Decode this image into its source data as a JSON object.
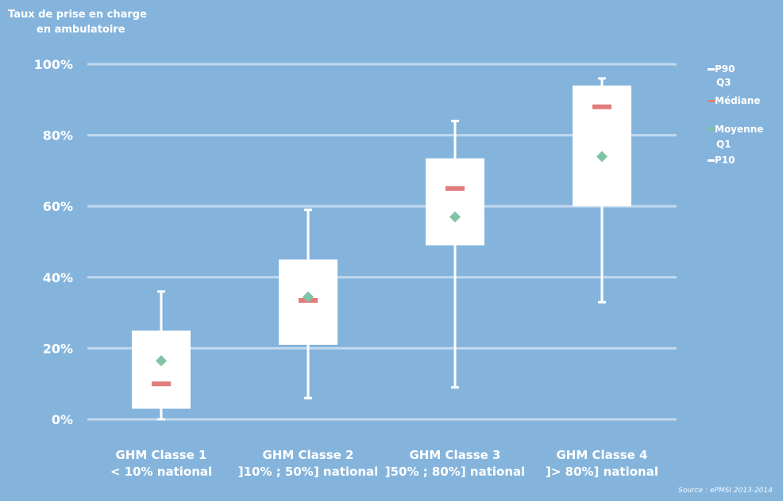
{
  "chart_data": {
    "type": "boxplot",
    "ylabel": [
      "Taux de prise en charge",
      "en ambulatoire"
    ],
    "ylim": [
      0,
      100
    ],
    "yticks": [
      0,
      20,
      40,
      60,
      80,
      100
    ],
    "ytick_labels": [
      "0%",
      "20%",
      "40%",
      "60%",
      "80%",
      "100%"
    ],
    "grid": true,
    "legend_position": "right",
    "legend": [
      {
        "key": "p90",
        "label": "P90"
      },
      {
        "key": "q3",
        "label": "Q3"
      },
      {
        "key": "median",
        "label": "Médiane"
      },
      {
        "key": "mean",
        "label": "Moyenne"
      },
      {
        "key": "q1",
        "label": "Q1"
      },
      {
        "key": "p10",
        "label": "P10"
      }
    ],
    "categories": [
      {
        "line1": "GHM Classe 1",
        "line2": "< 10% national"
      },
      {
        "line1": "GHM Classe 2",
        "line2": "]10% ; 50%] national"
      },
      {
        "line1": "GHM Classe 3",
        "line2": "]50% ; 80%] national"
      },
      {
        "line1": "GHM Classe 4",
        "line2": "]> 80%] national"
      }
    ],
    "series": {
      "p10": [
        0,
        6,
        9,
        33
      ],
      "q1": [
        3,
        21,
        49,
        60
      ],
      "median": [
        10,
        33.5,
        65,
        88
      ],
      "mean": [
        16.5,
        34.5,
        57,
        74
      ],
      "q3": [
        25,
        45,
        73.5,
        94
      ],
      "p90": [
        36,
        59,
        84,
        96
      ]
    },
    "source": "Source : ePMSI 2013-2014"
  },
  "colors": {
    "background": "#84b4dc",
    "box": "#ffffff",
    "grid": "#c2d9ee",
    "median": "#e07c7c",
    "mean": "#7fc4a4",
    "text": "#ffffff"
  }
}
